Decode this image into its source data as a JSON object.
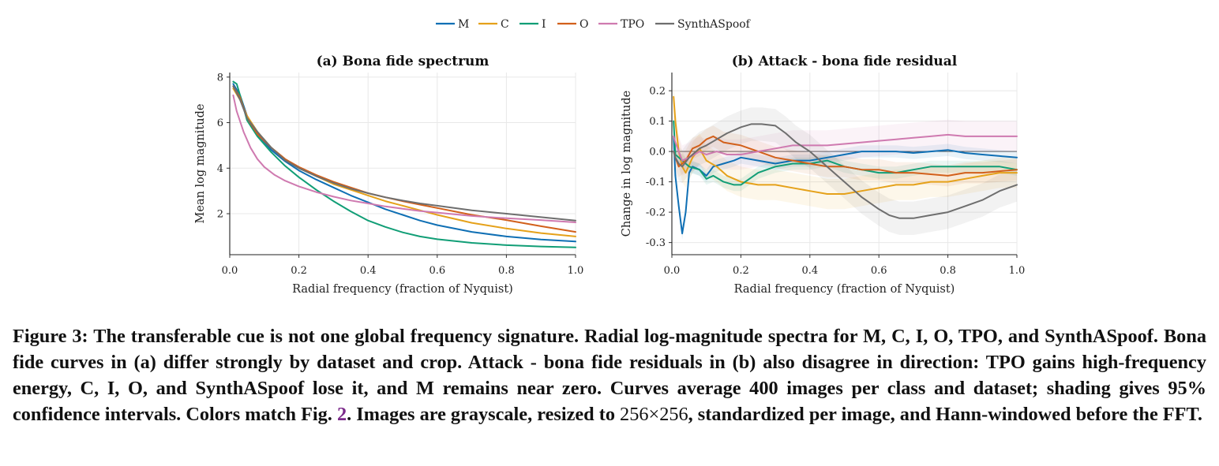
{
  "legend": [
    {
      "name": "M",
      "color": "#0f6fb4"
    },
    {
      "name": "C",
      "color": "#e5a11a"
    },
    {
      "name": "I",
      "color": "#119e76"
    },
    {
      "name": "O",
      "color": "#d2601b"
    },
    {
      "name": "TPO",
      "color": "#cf7ab0"
    },
    {
      "name": "SynthASpoof",
      "color": "#6e6e6e"
    }
  ],
  "chart_data": [
    {
      "type": "line",
      "title": "(a) Bona fide spectrum",
      "xlabel": "Radial frequency (fraction of Nyquist)",
      "ylabel": "Mean log magnitude",
      "xlim": [
        0,
        1.0
      ],
      "ylim": [
        0.2,
        8.2
      ],
      "xticks": [
        "0.0",
        "0.2",
        "0.4",
        "0.6",
        "0.8",
        "1.0"
      ],
      "yticks": [
        "2",
        "4",
        "6",
        "8"
      ],
      "grid": true,
      "series": [
        {
          "name": "M",
          "color": "#0f6fb4",
          "x": [
            0.01,
            0.03,
            0.05,
            0.08,
            0.12,
            0.16,
            0.2,
            0.25,
            0.3,
            0.35,
            0.4,
            0.45,
            0.5,
            0.55,
            0.6,
            0.7,
            0.8,
            0.9,
            1.0
          ],
          "y": [
            7.7,
            7.2,
            6.3,
            5.5,
            4.8,
            4.3,
            3.9,
            3.5,
            3.15,
            2.8,
            2.5,
            2.2,
            1.95,
            1.7,
            1.5,
            1.2,
            1.0,
            0.87,
            0.78
          ]
        },
        {
          "name": "C",
          "color": "#e5a11a",
          "x": [
            0.01,
            0.03,
            0.05,
            0.08,
            0.12,
            0.16,
            0.2,
            0.25,
            0.3,
            0.35,
            0.4,
            0.45,
            0.5,
            0.55,
            0.6,
            0.7,
            0.8,
            0.9,
            1.0
          ],
          "y": [
            7.5,
            7.0,
            6.3,
            5.6,
            4.9,
            4.4,
            4.0,
            3.65,
            3.3,
            3.05,
            2.8,
            2.55,
            2.35,
            2.15,
            1.95,
            1.6,
            1.35,
            1.15,
            1.0
          ]
        },
        {
          "name": "I",
          "color": "#119e76",
          "x": [
            0.01,
            0.02,
            0.03,
            0.05,
            0.08,
            0.12,
            0.16,
            0.2,
            0.25,
            0.3,
            0.35,
            0.4,
            0.45,
            0.5,
            0.55,
            0.6,
            0.7,
            0.8,
            0.9,
            1.0
          ],
          "y": [
            7.8,
            7.7,
            7.2,
            6.1,
            5.4,
            4.7,
            4.1,
            3.6,
            3.05,
            2.55,
            2.1,
            1.7,
            1.42,
            1.18,
            1.0,
            0.88,
            0.72,
            0.62,
            0.56,
            0.52
          ]
        },
        {
          "name": "O",
          "color": "#d2601b",
          "x": [
            0.01,
            0.03,
            0.05,
            0.08,
            0.12,
            0.16,
            0.2,
            0.25,
            0.3,
            0.35,
            0.4,
            0.45,
            0.5,
            0.55,
            0.6,
            0.7,
            0.8,
            0.9,
            1.0
          ],
          "y": [
            7.6,
            7.1,
            6.2,
            5.5,
            4.9,
            4.4,
            4.05,
            3.7,
            3.4,
            3.15,
            2.9,
            2.72,
            2.55,
            2.4,
            2.25,
            1.95,
            1.72,
            1.45,
            1.2
          ]
        },
        {
          "name": "TPO",
          "color": "#cf7ab0",
          "x": [
            0.01,
            0.02,
            0.04,
            0.06,
            0.08,
            0.1,
            0.13,
            0.16,
            0.2,
            0.25,
            0.3,
            0.35,
            0.4,
            0.45,
            0.5,
            0.55,
            0.6,
            0.7,
            0.8,
            0.9,
            1.0
          ],
          "y": [
            7.2,
            6.5,
            5.6,
            4.9,
            4.4,
            4.05,
            3.7,
            3.45,
            3.2,
            2.95,
            2.75,
            2.58,
            2.45,
            2.32,
            2.22,
            2.12,
            2.05,
            1.9,
            1.8,
            1.72,
            1.62
          ]
        },
        {
          "name": "SynthASpoof",
          "color": "#6e6e6e",
          "x": [
            0.01,
            0.03,
            0.05,
            0.08,
            0.12,
            0.16,
            0.2,
            0.25,
            0.3,
            0.35,
            0.4,
            0.45,
            0.5,
            0.55,
            0.6,
            0.7,
            0.8,
            0.9,
            1.0
          ],
          "y": [
            7.6,
            7.0,
            6.2,
            5.6,
            4.9,
            4.35,
            4.0,
            3.65,
            3.35,
            3.1,
            2.9,
            2.72,
            2.58,
            2.45,
            2.35,
            2.15,
            2.0,
            1.85,
            1.7
          ]
        }
      ]
    },
    {
      "type": "line",
      "title": "(b) Attack - bona fide residual",
      "xlabel": "Radial frequency (fraction of Nyquist)",
      "ylabel": "Change in log magnitude",
      "xlim": [
        0,
        1.0
      ],
      "ylim": [
        -0.34,
        0.26
      ],
      "xticks": [
        "0.0",
        "0.2",
        "0.4",
        "0.6",
        "0.8",
        "1.0"
      ],
      "yticks": [
        "-0.3",
        "-0.2",
        "-0.1",
        "0.0",
        "0.1",
        "0.2"
      ],
      "zero_line": true,
      "grid": true,
      "series": [
        {
          "name": "M",
          "color": "#0f6fb4",
          "ci": 0.02,
          "x": [
            0.005,
            0.01,
            0.02,
            0.03,
            0.04,
            0.05,
            0.06,
            0.08,
            0.1,
            0.12,
            0.15,
            0.18,
            0.2,
            0.25,
            0.3,
            0.35,
            0.4,
            0.45,
            0.5,
            0.55,
            0.6,
            0.65,
            0.7,
            0.75,
            0.8,
            0.85,
            0.9,
            0.95,
            1.0
          ],
          "y": [
            0.05,
            -0.08,
            -0.18,
            -0.27,
            -0.2,
            -0.07,
            -0.05,
            -0.06,
            -0.08,
            -0.05,
            -0.04,
            -0.03,
            -0.02,
            -0.03,
            -0.04,
            -0.03,
            -0.03,
            -0.02,
            -0.01,
            0.0,
            0.0,
            0.0,
            -0.005,
            0.0,
            0.005,
            -0.005,
            -0.01,
            -0.015,
            -0.02
          ]
        },
        {
          "name": "C",
          "color": "#e5a11a",
          "ci": 0.05,
          "x": [
            0.005,
            0.01,
            0.02,
            0.03,
            0.04,
            0.06,
            0.08,
            0.1,
            0.13,
            0.16,
            0.2,
            0.25,
            0.3,
            0.35,
            0.4,
            0.45,
            0.5,
            0.55,
            0.6,
            0.65,
            0.7,
            0.75,
            0.8,
            0.85,
            0.9,
            0.95,
            1.0
          ],
          "y": [
            0.18,
            0.1,
            0.0,
            -0.05,
            -0.07,
            -0.02,
            0.01,
            -0.03,
            -0.05,
            -0.08,
            -0.1,
            -0.11,
            -0.11,
            -0.12,
            -0.13,
            -0.14,
            -0.14,
            -0.13,
            -0.12,
            -0.11,
            -0.11,
            -0.1,
            -0.1,
            -0.09,
            -0.08,
            -0.07,
            -0.07
          ]
        },
        {
          "name": "I",
          "color": "#119e76",
          "ci": 0.02,
          "x": [
            0.005,
            0.01,
            0.02,
            0.03,
            0.05,
            0.08,
            0.1,
            0.12,
            0.15,
            0.18,
            0.2,
            0.25,
            0.3,
            0.35,
            0.4,
            0.45,
            0.5,
            0.55,
            0.6,
            0.65,
            0.7,
            0.75,
            0.8,
            0.85,
            0.9,
            0.95,
            1.0
          ],
          "y": [
            0.1,
            -0.01,
            -0.02,
            -0.03,
            -0.05,
            -0.06,
            -0.09,
            -0.08,
            -0.1,
            -0.11,
            -0.11,
            -0.07,
            -0.05,
            -0.04,
            -0.04,
            -0.03,
            -0.05,
            -0.06,
            -0.07,
            -0.07,
            -0.06,
            -0.05,
            -0.05,
            -0.05,
            -0.05,
            -0.05,
            -0.06
          ]
        },
        {
          "name": "O",
          "color": "#d2601b",
          "ci": 0.035,
          "x": [
            0.005,
            0.01,
            0.02,
            0.03,
            0.04,
            0.06,
            0.08,
            0.1,
            0.12,
            0.15,
            0.2,
            0.25,
            0.3,
            0.35,
            0.4,
            0.45,
            0.5,
            0.55,
            0.6,
            0.65,
            0.7,
            0.75,
            0.8,
            0.85,
            0.9,
            0.95,
            1.0
          ],
          "y": [
            0.0,
            -0.02,
            -0.05,
            -0.04,
            -0.03,
            0.01,
            0.02,
            0.04,
            0.05,
            0.03,
            0.02,
            0.0,
            -0.02,
            -0.03,
            -0.04,
            -0.05,
            -0.05,
            -0.06,
            -0.06,
            -0.07,
            -0.07,
            -0.075,
            -0.08,
            -0.07,
            -0.07,
            -0.065,
            -0.06
          ]
        },
        {
          "name": "TPO",
          "color": "#cf7ab0",
          "ci": 0.05,
          "x": [
            0.005,
            0.01,
            0.03,
            0.05,
            0.08,
            0.1,
            0.13,
            0.16,
            0.2,
            0.25,
            0.3,
            0.35,
            0.4,
            0.45,
            0.5,
            0.55,
            0.6,
            0.65,
            0.7,
            0.75,
            0.8,
            0.85,
            0.9,
            0.95,
            1.0
          ],
          "y": [
            0.05,
            0.03,
            -0.03,
            -0.02,
            0.0,
            -0.01,
            0.0,
            -0.01,
            -0.01,
            0.0,
            0.01,
            0.02,
            0.02,
            0.02,
            0.025,
            0.03,
            0.035,
            0.04,
            0.045,
            0.05,
            0.055,
            0.05,
            0.05,
            0.05,
            0.05
          ]
        },
        {
          "name": "SynthASpoof",
          "color": "#6e6e6e",
          "ci": 0.055,
          "x": [
            0.005,
            0.01,
            0.02,
            0.03,
            0.05,
            0.08,
            0.1,
            0.13,
            0.16,
            0.2,
            0.23,
            0.26,
            0.3,
            0.33,
            0.36,
            0.4,
            0.43,
            0.46,
            0.5,
            0.55,
            0.6,
            0.63,
            0.66,
            0.7,
            0.75,
            0.8,
            0.85,
            0.9,
            0.95,
            1.0
          ],
          "y": [
            0.0,
            -0.02,
            -0.04,
            -0.05,
            -0.02,
            0.01,
            0.02,
            0.04,
            0.06,
            0.08,
            0.09,
            0.09,
            0.085,
            0.06,
            0.03,
            0.0,
            -0.03,
            -0.06,
            -0.1,
            -0.15,
            -0.19,
            -0.21,
            -0.22,
            -0.22,
            -0.21,
            -0.2,
            -0.18,
            -0.16,
            -0.13,
            -0.11
          ]
        }
      ]
    }
  ],
  "caption": {
    "lead": "Figure 3: The transferable cue is not one global frequency signature. Radial log-magnitude spectra for M, C, I, O, TPO, and SynthASpoof. Bona fide curves in (a) differ strongly by dataset and crop. Attack - bona fide residuals in (b) also disagree in direction: TPO gains high-frequency energy, C, I, O, and SynthASpoof lose it, and M remains near zero. Curves average 400 images per class and dataset; shading gives 95% confidence intervals. Colors match Fig.",
    "ref": "2",
    "after_ref": ". Images are grayscale, resized to",
    "dims": "256×256",
    "tail": ", standardized per image, and Hann-windowed before the FFT."
  }
}
